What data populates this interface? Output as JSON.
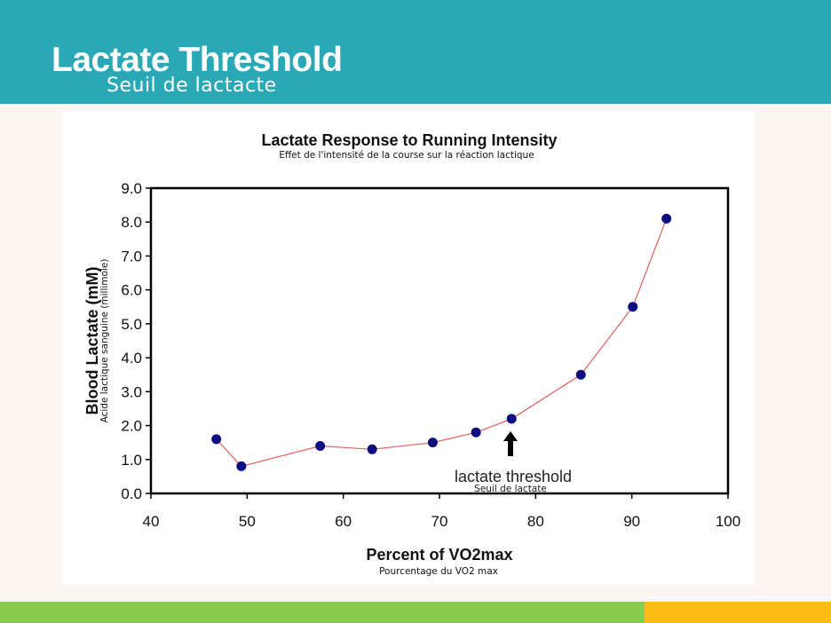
{
  "slide": {
    "title": "Lactate Threshold",
    "subtitle": "Seuil de lactacte"
  },
  "colors": {
    "header": "#2aa8b5",
    "point": "#0d0d80",
    "line": "#e06060",
    "footer_green": "#8dcb4f",
    "footer_yellow": "#fdbb17"
  },
  "chart_data": {
    "type": "line",
    "title": "Lactate Response to Running Intensity",
    "title_translation": "Effet de l'intensité de la course sur la réaction lactique",
    "xlabel": "Percent of VO2max",
    "xlabel_translation": "Pourcentage du VO2 max",
    "ylabel": "Blood Lactate (mM)",
    "ylabel_translation": "Acide lactique sanguine (millimole)",
    "xlim": [
      40,
      100
    ],
    "ylim": [
      0,
      9
    ],
    "x_ticks": [
      "40",
      "50",
      "60",
      "70",
      "80",
      "90",
      "100"
    ],
    "y_ticks": [
      "0.0",
      "1.0",
      "2.0",
      "3.0",
      "4.0",
      "5.0",
      "6.0",
      "7.0",
      "8.0",
      "9.0"
    ],
    "grid": false,
    "legend": "none",
    "series": [
      {
        "name": "Blood Lactate",
        "x": [
          46.8,
          49.4,
          57.6,
          63.0,
          69.3,
          73.8,
          77.5,
          84.7,
          90.1,
          93.6
        ],
        "y": [
          1.6,
          0.8,
          1.4,
          1.3,
          1.5,
          1.8,
          2.2,
          3.5,
          5.5,
          8.1
        ]
      }
    ],
    "annotation": {
      "label": "lactate threshold",
      "translation": "Seuil de lactate",
      "x": 77.5,
      "y": 2.2
    }
  }
}
